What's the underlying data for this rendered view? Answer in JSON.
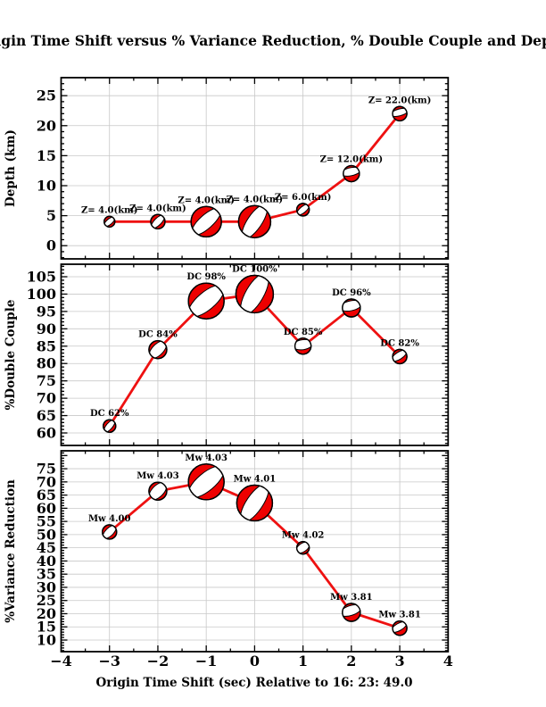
{
  "figure": {
    "title": "Origin Time Shift versus % Variance Reduction, % Double Couple and Depth",
    "x_axis": {
      "label": "Origin Time Shift (sec) Relative to 16: 23: 49.0",
      "lim": [
        -4,
        4
      ],
      "tick_step": 1,
      "minor_step": 0.5,
      "tick_labels": [
        "−4",
        "−3",
        "−2",
        "−1",
        "0",
        "1",
        "2",
        "3",
        "4"
      ]
    },
    "colors": {
      "marker_fill": "#ee0000",
      "marker_band": "#ffffff",
      "line": "#ee1111",
      "grid": "#c8c8c8",
      "frame": "#000000",
      "background": "#ffffff",
      "text": "#000000"
    }
  },
  "chart_data": [
    {
      "id": "depth",
      "type": "line",
      "ylabel": "Depth (km)",
      "ylim": [
        -2.2,
        28.0
      ],
      "yticks": {
        "start": 0,
        "end": 25,
        "step": 5,
        "minor_step": 1
      },
      "grid": true,
      "x": [
        -3,
        -2,
        -1,
        0,
        1,
        2,
        3
      ],
      "y": [
        4,
        4,
        4,
        4,
        6,
        12,
        22
      ],
      "point_labels": [
        "Z= 4.0(km)",
        "Z= 4.0(km)",
        "Z= 4.0(km)",
        "Z= 4.0(km)",
        "Z= 6.0(km)",
        "Z= 12.0(km)",
        "Z= 22.0(km)"
      ],
      "markers": [
        {
          "r": 6,
          "angle": -40,
          "band_w": 0.52,
          "band_dy": 0
        },
        {
          "r": 8,
          "angle": -45,
          "band_w": 0.5,
          "band_dy": 0
        },
        {
          "r": 17,
          "angle": -42,
          "band_w": 0.45,
          "band_dy": 0
        },
        {
          "r": 18,
          "angle": -56,
          "band_w": 0.45,
          "band_dy": 0
        },
        {
          "r": 7,
          "angle": -40,
          "band_w": 0.5,
          "band_dy": 0
        },
        {
          "r": 9,
          "angle": -12,
          "band_w": 0.5,
          "band_dy": -0.25
        },
        {
          "r": 8,
          "angle": -15,
          "band_w": 0.48,
          "band_dy": -0.18
        }
      ]
    },
    {
      "id": "double-couple",
      "type": "line",
      "ylabel": "%Double Couple",
      "ylim": [
        56.4,
        108.6
      ],
      "yticks": {
        "start": 60,
        "end": 105,
        "step": 5,
        "minor_step": 1
      },
      "grid": true,
      "x": [
        -3,
        -2,
        -1,
        0,
        1,
        2,
        3
      ],
      "y": [
        62,
        84,
        98,
        100,
        85,
        96,
        82
      ],
      "point_labels": [
        "DC 62%",
        "DC 84%",
        "DC 98%",
        "DC 100%",
        "DC 85%",
        "DC 96%",
        "DC 82%"
      ],
      "markers": [
        {
          "r": 7,
          "angle": -50,
          "band_w": 0.5,
          "band_dy": 0
        },
        {
          "r": 10,
          "angle": -45,
          "band_w": 0.62,
          "band_dy": 0
        },
        {
          "r": 20,
          "angle": -40,
          "band_w": 0.5,
          "band_dy": 0
        },
        {
          "r": 21,
          "angle": -60,
          "band_w": 0.48,
          "band_dy": 0
        },
        {
          "r": 9,
          "angle": -8,
          "band_w": 0.62,
          "band_dy": -0.18
        },
        {
          "r": 10,
          "angle": -12,
          "band_w": 0.55,
          "band_dy": -0.25
        },
        {
          "r": 8,
          "angle": -33,
          "band_w": 0.5,
          "band_dy": -0.15
        }
      ]
    },
    {
      "id": "variance-reduction",
      "type": "line",
      "ylabel": "%Variance Reduction",
      "ylim": [
        5.6,
        81.8
      ],
      "yticks": {
        "start": 10,
        "end": 75,
        "step": 5,
        "minor_step": 1
      },
      "grid": true,
      "x": [
        -3,
        -2,
        -1,
        0,
        1,
        2,
        3
      ],
      "y": [
        51,
        66.5,
        70,
        62,
        45,
        20.5,
        14.5
      ],
      "point_labels": [
        "Mw 4.00",
        "Mw 4.03",
        "Mw 4.03",
        "Mw 4.01",
        "Mw 4.02",
        "Mw 3.81",
        "Mw 3.81"
      ],
      "markers": [
        {
          "r": 8,
          "angle": -45,
          "band_w": 0.55,
          "band_dy": 0
        },
        {
          "r": 10,
          "angle": -45,
          "band_w": 0.65,
          "band_dy": 0
        },
        {
          "r": 20,
          "angle": -40,
          "band_w": 0.5,
          "band_dy": 0
        },
        {
          "r": 20,
          "angle": -56,
          "band_w": 0.46,
          "band_dy": 0
        },
        {
          "r": 7,
          "angle": -35,
          "band_w": 0.68,
          "band_dy": -0.05
        },
        {
          "r": 10,
          "angle": -18,
          "band_w": 0.55,
          "band_dy": -0.22
        },
        {
          "r": 8,
          "angle": -30,
          "band_w": 0.5,
          "band_dy": -0.2
        }
      ]
    }
  ]
}
